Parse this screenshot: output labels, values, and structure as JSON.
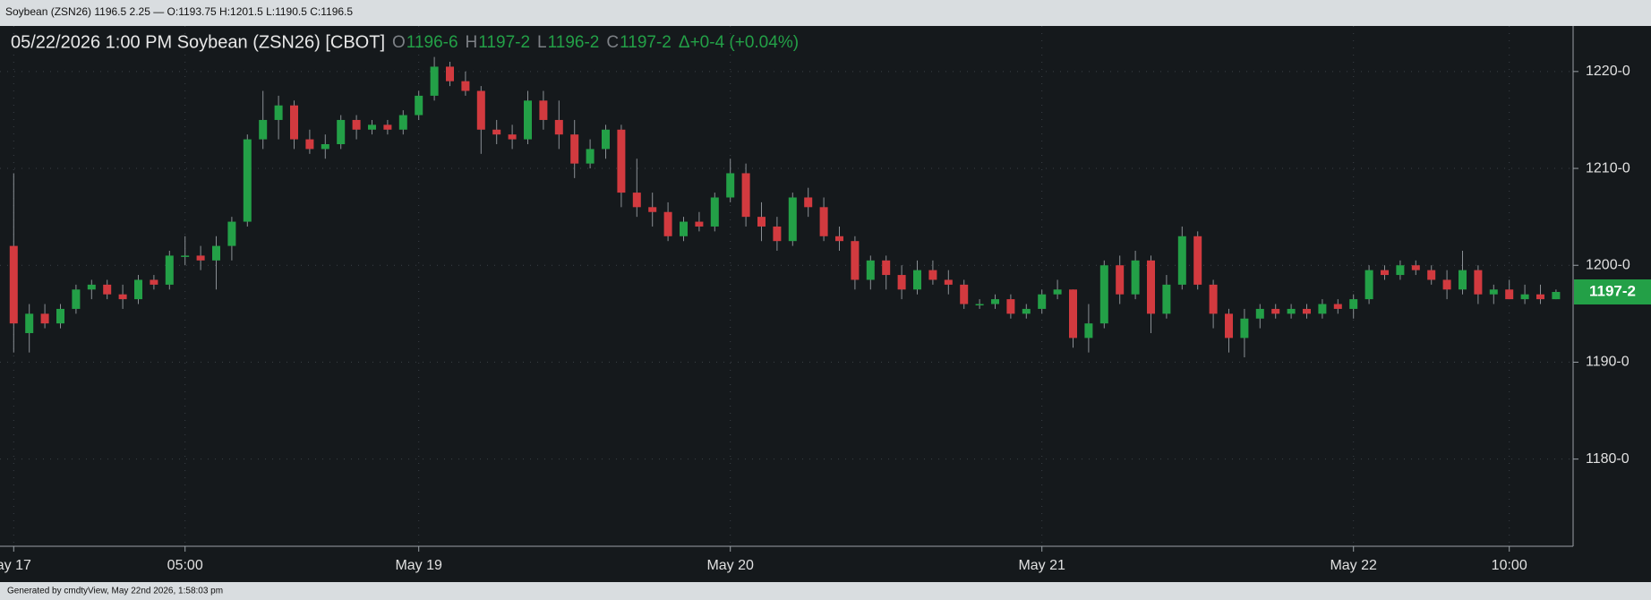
{
  "header": "Soybean (ZSN26) 1196.5 2.25 — O:1193.75 H:1201.5 L:1190.5 C:1196.5",
  "footer": "Generated by cmdtyView, May 22nd 2026, 1:58:03 pm",
  "chart_data": {
    "type": "candlestick",
    "title": "05/22/2026  1:00 PM Soybean (ZSN26) [CBOT]",
    "ohlc_legend": [
      {
        "key": "O",
        "value": "1196-6"
      },
      {
        "key": "H",
        "value": "1197-2"
      },
      {
        "key": "L",
        "value": "1196-2"
      },
      {
        "key": "C",
        "value": "1197-2"
      }
    ],
    "change": "Δ+0-4 (+0.04%)",
    "up_color": "#23a047",
    "down_color": "#d23a3f",
    "last_price": {
      "value": 1197.25,
      "label": "1197-2"
    },
    "categories": [
      "ay 17",
      null,
      null,
      null,
      null,
      null,
      null,
      null,
      null,
      null,
      null,
      "05:00",
      null,
      null,
      null,
      null,
      null,
      null,
      null,
      null,
      null,
      null,
      null,
      null,
      null,
      null,
      "May 19",
      null,
      null,
      null,
      null,
      null,
      null,
      null,
      null,
      null,
      null,
      null,
      null,
      null,
      null,
      null,
      null,
      null,
      null,
      null,
      "May 20",
      null,
      null,
      null,
      null,
      null,
      null,
      null,
      null,
      null,
      null,
      null,
      null,
      null,
      null,
      null,
      null,
      null,
      null,
      null,
      "May 21",
      null,
      null,
      null,
      null,
      null,
      null,
      null,
      null,
      null,
      null,
      null,
      null,
      null,
      null,
      null,
      null,
      null,
      null,
      null,
      "May 22",
      null,
      null,
      null,
      null,
      null,
      null,
      null,
      null,
      null,
      "10:00",
      null,
      null,
      null
    ],
    "open": [
      1202,
      1193,
      1195,
      1194,
      1195.5,
      1197.5,
      1198,
      1197,
      1196.5,
      1198.5,
      1198,
      1201,
      1201,
      1200.5,
      1202,
      1204.5,
      1213,
      1215,
      1216.5,
      1213,
      1212,
      1212.5,
      1215,
      1214,
      1214.5,
      1214,
      1215.5,
      1217.5,
      1220.5,
      1219,
      1218,
      1214,
      1213.5,
      1213,
      1217,
      1215,
      1213.5,
      1210.5,
      1212,
      1214,
      1207.5,
      1206,
      1205.5,
      1203,
      1204.5,
      1204,
      1207,
      1209.5,
      1205,
      1204,
      1202.5,
      1207,
      1206,
      1203,
      1202.5,
      1198.5,
      1200.5,
      1199,
      1197.5,
      1199.5,
      1198.5,
      1198,
      1196,
      1196,
      1196.5,
      1195,
      1195.5,
      1197,
      1197.5,
      1192.5,
      1194,
      1200,
      1197,
      1200.5,
      1195,
      1198,
      1203,
      1198,
      1195,
      1192.5,
      1194.5,
      1195.5,
      1195,
      1195.5,
      1195,
      1196,
      1195.5,
      1196.5,
      1199.5,
      1199,
      1200,
      1199.5,
      1198.5,
      1197.5,
      1199.5,
      1197,
      1197.5,
      1196.5,
      1197,
      1196.5
    ],
    "high": [
      1209.5,
      1196,
      1196,
      1196,
      1198,
      1198.5,
      1198.5,
      1198,
      1199,
      1199,
      1201.5,
      1203,
      1202,
      1203,
      1205,
      1213.5,
      1218,
      1217.5,
      1217,
      1214,
      1213.5,
      1215.5,
      1215.5,
      1215,
      1215,
      1216,
      1218,
      1221.5,
      1221,
      1220,
      1218.5,
      1215,
      1214.5,
      1218,
      1218,
      1217,
      1215,
      1213,
      1214.5,
      1214.5,
      1211,
      1207.5,
      1206.5,
      1205,
      1205.5,
      1207.5,
      1211,
      1210.5,
      1206.5,
      1205,
      1207.5,
      1208,
      1207,
      1204,
      1203,
      1201,
      1201,
      1200,
      1200.5,
      1200.5,
      1199.5,
      1198.5,
      1196.5,
      1197,
      1197,
      1196,
      1197.5,
      1198.5,
      1197.5,
      1196,
      1200.5,
      1201,
      1201.5,
      1201,
      1199,
      1204,
      1203.5,
      1198.5,
      1195.5,
      1195.5,
      1196,
      1196,
      1196,
      1196,
      1196.5,
      1196.5,
      1197,
      1200,
      1200,
      1200.5,
      1200.5,
      1200,
      1199.5,
      1201.5,
      1200,
      1198,
      1198.5,
      1198,
      1198,
      1197.5
    ],
    "low": [
      1191,
      1191,
      1193.5,
      1193.5,
      1195,
      1196.5,
      1196.5,
      1195.5,
      1196,
      1197.5,
      1197.5,
      1200,
      1199.5,
      1197.5,
      1200.5,
      1204,
      1212,
      1213,
      1212,
      1211.5,
      1211,
      1212,
      1213,
      1213.5,
      1213.5,
      1213.5,
      1215,
      1217,
      1218.5,
      1217.5,
      1211.5,
      1212.5,
      1212,
      1212.5,
      1214,
      1212,
      1209,
      1210,
      1211,
      1206,
      1205,
      1204,
      1202.5,
      1202.5,
      1203.5,
      1203.5,
      1206.5,
      1204,
      1202.5,
      1201.5,
      1202,
      1205,
      1202.5,
      1201.5,
      1197.5,
      1197.5,
      1197.5,
      1196.5,
      1197,
      1198,
      1197,
      1195.5,
      1195.5,
      1195.5,
      1194.5,
      1194.5,
      1195,
      1196.5,
      1191.5,
      1191,
      1193.5,
      1196,
      1196.5,
      1193,
      1194.5,
      1197.5,
      1197.5,
      1193.5,
      1191,
      1190.5,
      1193.5,
      1194.5,
      1194.5,
      1194.5,
      1194.5,
      1195,
      1194.5,
      1196,
      1198.5,
      1198.5,
      1199,
      1198,
      1196.5,
      1197,
      1196,
      1196,
      1196.5,
      1196,
      1196,
      1196.5
    ],
    "close": [
      1194,
      1195,
      1194,
      1195.5,
      1197.5,
      1198,
      1197,
      1196.5,
      1198.5,
      1198,
      1201,
      1201,
      1200.5,
      1202,
      1204.5,
      1213,
      1215,
      1216.5,
      1213,
      1212,
      1212.5,
      1215,
      1214,
      1214.5,
      1214,
      1215.5,
      1217.5,
      1220.5,
      1219,
      1218,
      1214,
      1213.5,
      1213,
      1217,
      1215,
      1213.5,
      1210.5,
      1212,
      1214,
      1207.5,
      1206,
      1205.5,
      1203,
      1204.5,
      1204,
      1207,
      1209.5,
      1205,
      1204,
      1202.5,
      1207,
      1206,
      1203,
      1202.5,
      1198.5,
      1200.5,
      1199,
      1197.5,
      1199.5,
      1198.5,
      1198,
      1196,
      1196,
      1196.5,
      1195,
      1195.5,
      1197,
      1197.5,
      1192.5,
      1194,
      1200,
      1197,
      1200.5,
      1195,
      1198,
      1203,
      1198,
      1195,
      1192.5,
      1194.5,
      1195.5,
      1195,
      1195.5,
      1195,
      1196,
      1195.5,
      1196.5,
      1199.5,
      1199,
      1200,
      1199.5,
      1198.5,
      1197.5,
      1199.5,
      1197,
      1197.5,
      1196.5,
      1197,
      1196.5,
      1197.25
    ],
    "ylim": [
      1171,
      1224.7
    ],
    "yticks": [
      {
        "value": 1180,
        "label": "1180-0"
      },
      {
        "value": 1190,
        "label": "1190-0"
      },
      {
        "value": 1200,
        "label": "1200-0"
      },
      {
        "value": 1210,
        "label": "1210-0"
      },
      {
        "value": 1220,
        "label": "1220-0"
      }
    ],
    "grid": true
  }
}
